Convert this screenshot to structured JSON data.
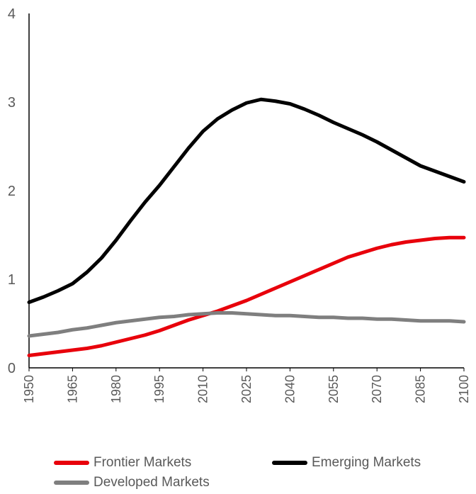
{
  "chart_data": {
    "type": "line",
    "title": "",
    "xlabel": "",
    "ylabel": "",
    "ylim": [
      0,
      4
    ],
    "xlim": [
      1950,
      2100
    ],
    "y_ticks": [
      "0",
      "1",
      "2",
      "3",
      "4"
    ],
    "x_ticks": [
      "1950",
      "1965",
      "1980",
      "1995",
      "2010",
      "2025",
      "2040",
      "2055",
      "2070",
      "2085",
      "2100"
    ],
    "grid": false,
    "legend_position": "bottom",
    "x": [
      1950,
      1955,
      1960,
      1965,
      1970,
      1975,
      1980,
      1985,
      1990,
      1995,
      2000,
      2005,
      2010,
      2015,
      2020,
      2025,
      2030,
      2035,
      2040,
      2045,
      2050,
      2055,
      2060,
      2065,
      2070,
      2075,
      2080,
      2085,
      2090,
      2095,
      2100
    ],
    "series": [
      {
        "name": "Frontier Markets",
        "color": "#e8000b",
        "values": [
          0.14,
          0.16,
          0.18,
          0.2,
          0.22,
          0.25,
          0.29,
          0.33,
          0.37,
          0.42,
          0.48,
          0.54,
          0.59,
          0.64,
          0.7,
          0.76,
          0.83,
          0.9,
          0.97,
          1.04,
          1.11,
          1.18,
          1.25,
          1.3,
          1.35,
          1.39,
          1.42,
          1.44,
          1.46,
          1.47,
          1.47
        ]
      },
      {
        "name": "Emerging Markets",
        "color": "#000000",
        "values": [
          0.74,
          0.8,
          0.87,
          0.95,
          1.08,
          1.24,
          1.44,
          1.66,
          1.87,
          2.06,
          2.27,
          2.48,
          2.67,
          2.81,
          2.91,
          2.99,
          3.03,
          3.01,
          2.98,
          2.92,
          2.85,
          2.77,
          2.7,
          2.63,
          2.55,
          2.46,
          2.37,
          2.28,
          2.22,
          2.16,
          2.1
        ]
      },
      {
        "name": "Developed Markets",
        "color": "#7f7f7f",
        "values": [
          0.36,
          0.38,
          0.4,
          0.43,
          0.45,
          0.48,
          0.51,
          0.53,
          0.55,
          0.57,
          0.58,
          0.6,
          0.61,
          0.62,
          0.62,
          0.61,
          0.6,
          0.59,
          0.59,
          0.58,
          0.57,
          0.57,
          0.56,
          0.56,
          0.55,
          0.55,
          0.54,
          0.53,
          0.53,
          0.53,
          0.52
        ]
      }
    ]
  }
}
